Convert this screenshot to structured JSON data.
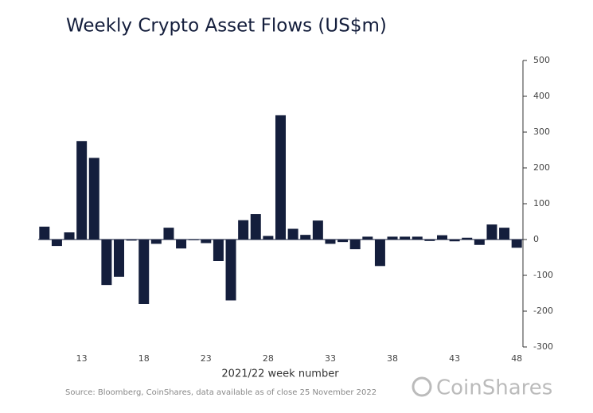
{
  "chart_data": {
    "type": "bar",
    "title": "Weekly Crypto Asset Flows (US$m)",
    "xlabel": "2021/22 week number",
    "source": "Source: Bloomberg, CoinShares, data available as of close 25 November 2022",
    "logo": "CoinShares",
    "categories": [
      null,
      null,
      null,
      "13",
      null,
      null,
      null,
      null,
      "18",
      null,
      null,
      null,
      null,
      "23",
      null,
      null,
      null,
      null,
      "28",
      null,
      null,
      null,
      null,
      "33",
      null,
      null,
      null,
      null,
      "38",
      null,
      null,
      null,
      null,
      "43",
      null,
      null,
      null,
      null,
      "48"
    ],
    "values": [
      36,
      -18,
      20,
      275,
      228,
      -127,
      -104,
      -3,
      -180,
      -12,
      33,
      -25,
      -2,
      -10,
      -60,
      -170,
      54,
      71,
      10,
      347,
      30,
      13,
      53,
      -12,
      -7,
      -27,
      8,
      -74,
      8,
      8,
      8,
      -4,
      12,
      -5,
      5,
      -15,
      42,
      33,
      -23
    ],
    "color": "#141e3c",
    "ylim": [
      -300,
      500
    ],
    "yticks": [
      500,
      400,
      300,
      200,
      100,
      0,
      -100,
      -200,
      -300
    ],
    "grid": false
  }
}
